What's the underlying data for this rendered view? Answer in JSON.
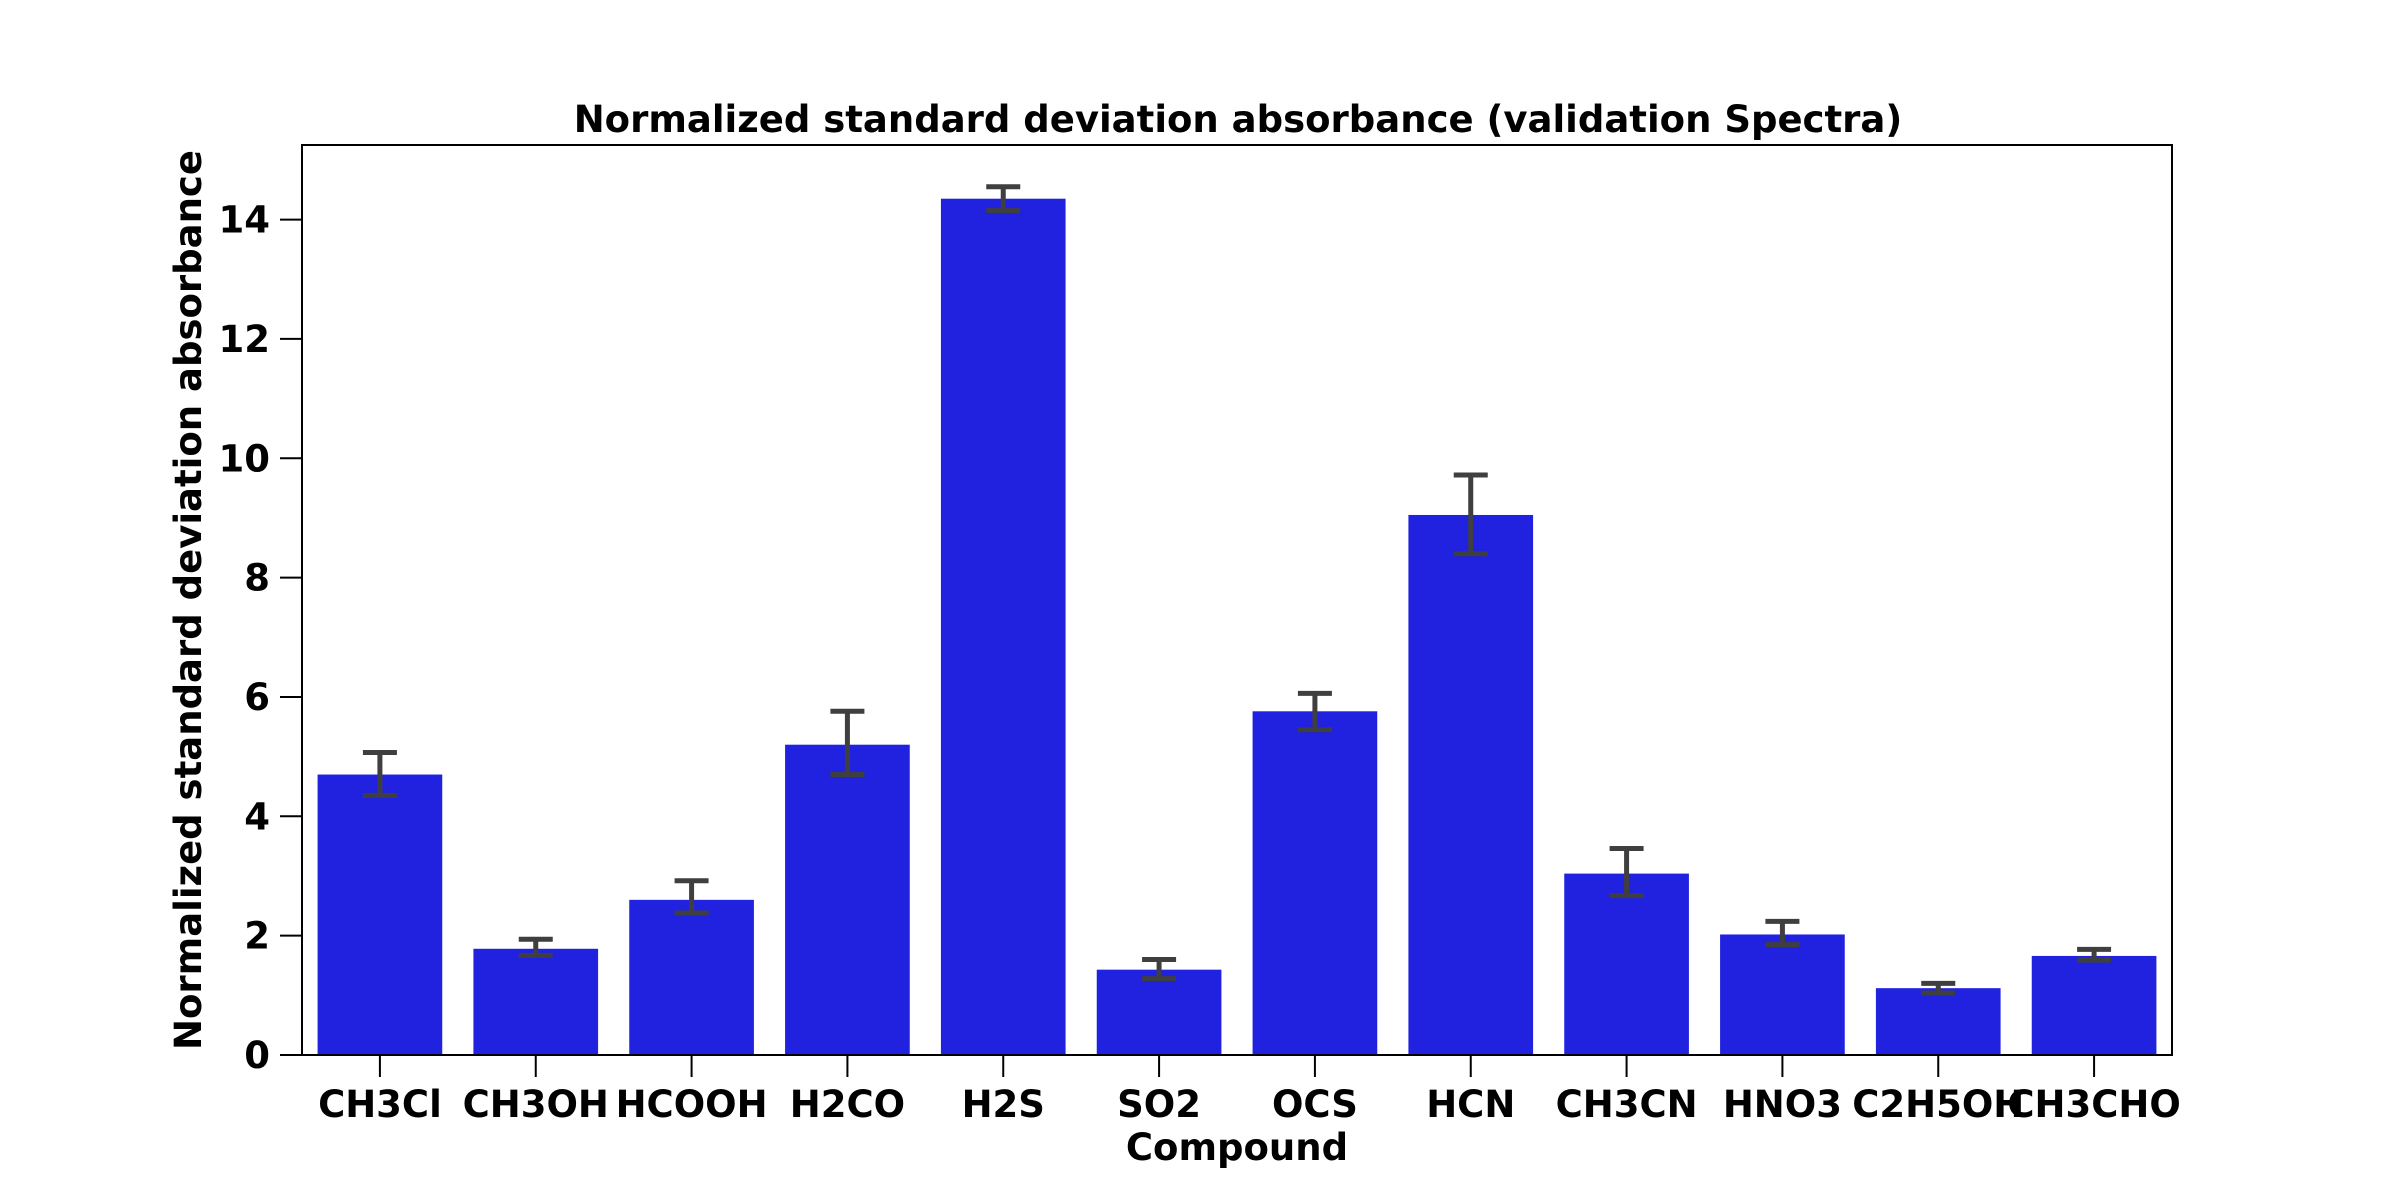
{
  "chart_data": {
    "type": "bar",
    "title": "Normalized standard deviation absorbance (validation Spectra)",
    "xlabel": "Compound",
    "ylabel": "Normalized standard deviation absorbance",
    "categories": [
      "CH3Cl",
      "CH3OH",
      "HCOOH",
      "H2CO",
      "H2S",
      "SO2",
      "OCS",
      "HCN",
      "CH3CN",
      "HNO3",
      "C2H5OH",
      "CH3CHO"
    ],
    "values": [
      4.7,
      1.78,
      2.6,
      5.2,
      14.35,
      1.43,
      5.76,
      9.05,
      3.04,
      2.02,
      1.12,
      1.66
    ],
    "error_low": [
      4.35,
      1.67,
      2.38,
      4.7,
      14.15,
      1.28,
      5.45,
      8.4,
      2.67,
      1.85,
      1.04,
      1.59
    ],
    "error_high": [
      5.07,
      1.94,
      2.92,
      5.76,
      14.55,
      1.6,
      6.06,
      9.72,
      3.46,
      2.24,
      1.2,
      1.77
    ],
    "yticks": [
      0,
      2,
      4,
      6,
      8,
      10,
      12,
      14
    ],
    "ylim": [
      0,
      15.25
    ],
    "bar_color": "#2121e0",
    "error_color": "#3f3f3f",
    "grid": false
  }
}
